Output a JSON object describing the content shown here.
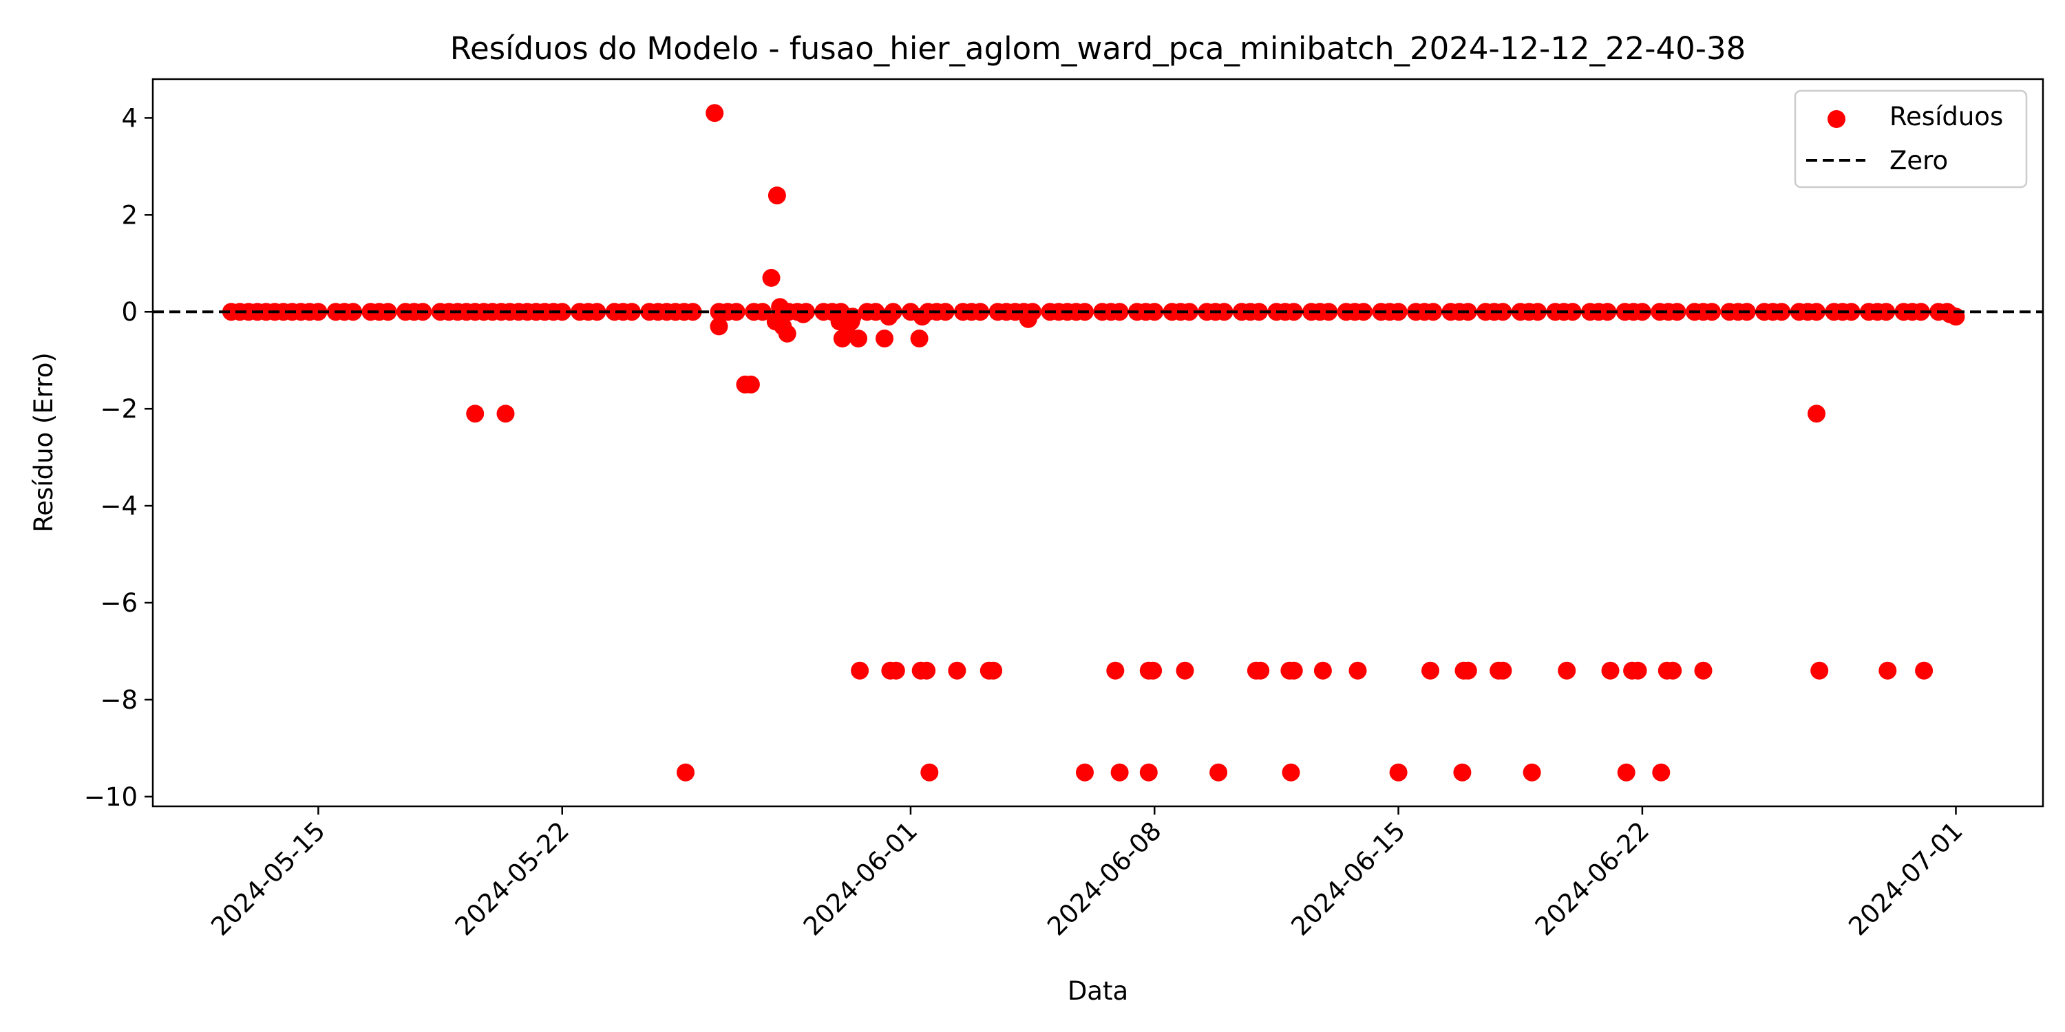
{
  "chart_data": {
    "type": "scatter",
    "title": "Resíduos do Modelo - fusao_hier_aglom_ward_pca_minibatch_2024-12-12_22-40-38",
    "xlabel": "Data",
    "ylabel": "Resíduo (Erro)",
    "xlim": [
      "2024-05-10",
      "2024-07-03"
    ],
    "ylim": [
      -10.2,
      4.8
    ],
    "xticks": [
      "2024-05-15",
      "2024-05-22",
      "2024-06-01",
      "2024-06-08",
      "2024-06-15",
      "2024-06-22",
      "2024-07-01"
    ],
    "yticks": [
      4,
      2,
      0,
      -2,
      -4,
      -6,
      -8,
      -10
    ],
    "ytick_labels": [
      "4",
      "2",
      "0",
      "−2",
      "−4",
      "−6",
      "−8",
      "−10"
    ],
    "grid": false,
    "legend": {
      "position": "top-right",
      "entries": [
        {
          "label": "Resíduos",
          "marker": "circle",
          "color": "#ff0000"
        },
        {
          "label": "Zero",
          "marker": "dashed-line",
          "color": "#000000"
        }
      ]
    },
    "reference_line": {
      "name": "Zero",
      "y": 0,
      "style": "dashed",
      "color": "#000000"
    },
    "series": [
      {
        "name": "Resíduos",
        "color": "#ff0000",
        "points": [
          [
            "2024-05-12 12:00",
            0
          ],
          [
            "2024-05-12 18:00",
            0
          ],
          [
            "2024-05-13 00:00",
            0
          ],
          [
            "2024-05-13 06:00",
            0
          ],
          [
            "2024-05-13 12:00",
            0
          ],
          [
            "2024-05-13 18:00",
            0
          ],
          [
            "2024-05-14 00:00",
            0
          ],
          [
            "2024-05-14 06:00",
            0
          ],
          [
            "2024-05-14 12:00",
            0
          ],
          [
            "2024-05-14 18:00",
            0
          ],
          [
            "2024-05-15 00:00",
            0
          ],
          [
            "2024-05-15 12:00",
            0
          ],
          [
            "2024-05-15 18:00",
            0
          ],
          [
            "2024-05-16 00:00",
            0
          ],
          [
            "2024-05-16 12:00",
            0
          ],
          [
            "2024-05-16 18:00",
            0
          ],
          [
            "2024-05-17 00:00",
            0
          ],
          [
            "2024-05-17 12:00",
            0
          ],
          [
            "2024-05-17 18:00",
            0
          ],
          [
            "2024-05-18 00:00",
            0
          ],
          [
            "2024-05-18 12:00",
            0
          ],
          [
            "2024-05-18 18:00",
            0
          ],
          [
            "2024-05-19 00:00",
            0
          ],
          [
            "2024-05-19 06:00",
            0
          ],
          [
            "2024-05-19 12:00",
            0
          ],
          [
            "2024-05-19 18:00",
            0
          ],
          [
            "2024-05-20 00:00",
            0
          ],
          [
            "2024-05-20 06:00",
            0
          ],
          [
            "2024-05-20 12:00",
            0
          ],
          [
            "2024-05-20 18:00",
            0
          ],
          [
            "2024-05-21 00:00",
            0
          ],
          [
            "2024-05-21 06:00",
            0
          ],
          [
            "2024-05-21 12:00",
            0
          ],
          [
            "2024-05-21 18:00",
            0
          ],
          [
            "2024-05-22 00:00",
            0
          ],
          [
            "2024-05-22 12:00",
            0
          ],
          [
            "2024-05-22 18:00",
            0
          ],
          [
            "2024-05-23 00:00",
            0
          ],
          [
            "2024-05-23 12:00",
            0
          ],
          [
            "2024-05-23 18:00",
            0
          ],
          [
            "2024-05-24 00:00",
            0
          ],
          [
            "2024-05-24 12:00",
            0
          ],
          [
            "2024-05-24 18:00",
            0
          ],
          [
            "2024-05-25 00:00",
            0
          ],
          [
            "2024-05-25 06:00",
            0
          ],
          [
            "2024-05-25 12:00",
            0
          ],
          [
            "2024-05-25 18:00",
            0
          ],
          [
            "2024-05-26 12:00",
            0
          ],
          [
            "2024-05-26 18:00",
            0
          ],
          [
            "2024-05-27 00:00",
            0
          ],
          [
            "2024-05-27 12:00",
            0
          ],
          [
            "2024-05-27 18:00",
            0
          ],
          [
            "2024-05-28 12:00",
            0
          ],
          [
            "2024-05-28 18:00",
            0
          ],
          [
            "2024-05-29 00:00",
            0
          ],
          [
            "2024-05-29 12:00",
            0
          ],
          [
            "2024-05-29 18:00",
            0
          ],
          [
            "2024-05-30 00:00",
            0
          ],
          [
            "2024-05-30 18:00",
            0
          ],
          [
            "2024-05-31 00:00",
            0
          ],
          [
            "2024-05-31 12:00",
            0
          ],
          [
            "2024-06-01 00:00",
            0
          ],
          [
            "2024-06-01 12:00",
            0
          ],
          [
            "2024-06-01 18:00",
            0
          ],
          [
            "2024-06-02 00:00",
            0
          ],
          [
            "2024-06-02 12:00",
            0
          ],
          [
            "2024-06-02 18:00",
            0
          ],
          [
            "2024-06-03 00:00",
            0
          ],
          [
            "2024-06-03 12:00",
            0
          ],
          [
            "2024-06-03 18:00",
            0
          ],
          [
            "2024-06-04 00:00",
            0
          ],
          [
            "2024-06-04 06:00",
            0
          ],
          [
            "2024-06-04 12:00",
            0
          ],
          [
            "2024-06-05 00:00",
            0
          ],
          [
            "2024-06-05 06:00",
            0
          ],
          [
            "2024-06-05 12:00",
            0
          ],
          [
            "2024-06-05 18:00",
            0
          ],
          [
            "2024-06-06 00:00",
            0
          ],
          [
            "2024-06-06 12:00",
            0
          ],
          [
            "2024-06-06 18:00",
            0
          ],
          [
            "2024-06-07 00:00",
            0
          ],
          [
            "2024-06-07 12:00",
            0
          ],
          [
            "2024-06-07 18:00",
            0
          ],
          [
            "2024-06-08 00:00",
            0
          ],
          [
            "2024-06-08 12:00",
            0
          ],
          [
            "2024-06-08 18:00",
            0
          ],
          [
            "2024-06-09 00:00",
            0
          ],
          [
            "2024-06-09 12:00",
            0
          ],
          [
            "2024-06-09 18:00",
            0
          ],
          [
            "2024-06-10 00:00",
            0
          ],
          [
            "2024-06-10 12:00",
            0
          ],
          [
            "2024-06-10 18:00",
            0
          ],
          [
            "2024-06-11 00:00",
            0
          ],
          [
            "2024-06-11 12:00",
            0
          ],
          [
            "2024-06-11 18:00",
            0
          ],
          [
            "2024-06-12 00:00",
            0
          ],
          [
            "2024-06-12 12:00",
            0
          ],
          [
            "2024-06-12 18:00",
            0
          ],
          [
            "2024-06-13 00:00",
            0
          ],
          [
            "2024-06-13 12:00",
            0
          ],
          [
            "2024-06-13 18:00",
            0
          ],
          [
            "2024-06-14 00:00",
            0
          ],
          [
            "2024-06-14 12:00",
            0
          ],
          [
            "2024-06-14 18:00",
            0
          ],
          [
            "2024-06-15 00:00",
            0
          ],
          [
            "2024-06-15 12:00",
            0
          ],
          [
            "2024-06-15 18:00",
            0
          ],
          [
            "2024-06-16 00:00",
            0
          ],
          [
            "2024-06-16 12:00",
            0
          ],
          [
            "2024-06-16 18:00",
            0
          ],
          [
            "2024-06-17 00:00",
            0
          ],
          [
            "2024-06-17 12:00",
            0
          ],
          [
            "2024-06-17 18:00",
            0
          ],
          [
            "2024-06-18 00:00",
            0
          ],
          [
            "2024-06-18 12:00",
            0
          ],
          [
            "2024-06-18 18:00",
            0
          ],
          [
            "2024-06-19 00:00",
            0
          ],
          [
            "2024-06-19 12:00",
            0
          ],
          [
            "2024-06-19 18:00",
            0
          ],
          [
            "2024-06-20 00:00",
            0
          ],
          [
            "2024-06-20 12:00",
            0
          ],
          [
            "2024-06-20 18:00",
            0
          ],
          [
            "2024-06-21 00:00",
            0
          ],
          [
            "2024-06-21 12:00",
            0
          ],
          [
            "2024-06-21 18:00",
            0
          ],
          [
            "2024-06-22 00:00",
            0
          ],
          [
            "2024-06-22 12:00",
            0
          ],
          [
            "2024-06-22 18:00",
            0
          ],
          [
            "2024-06-23 00:00",
            0
          ],
          [
            "2024-06-23 12:00",
            0
          ],
          [
            "2024-06-23 18:00",
            0
          ],
          [
            "2024-06-24 00:00",
            0
          ],
          [
            "2024-06-24 12:00",
            0
          ],
          [
            "2024-06-24 18:00",
            0
          ],
          [
            "2024-06-25 00:00",
            0
          ],
          [
            "2024-06-25 12:00",
            0
          ],
          [
            "2024-06-25 18:00",
            0
          ],
          [
            "2024-06-26 00:00",
            0
          ],
          [
            "2024-06-26 12:00",
            0
          ],
          [
            "2024-06-26 18:00",
            0
          ],
          [
            "2024-06-27 00:00",
            0
          ],
          [
            "2024-06-27 12:00",
            0
          ],
          [
            "2024-06-27 18:00",
            0
          ],
          [
            "2024-06-28 00:00",
            0
          ],
          [
            "2024-06-28 12:00",
            0
          ],
          [
            "2024-06-28 18:00",
            0
          ],
          [
            "2024-06-29 00:00",
            0
          ],
          [
            "2024-06-29 12:00",
            0
          ],
          [
            "2024-06-29 18:00",
            0
          ],
          [
            "2024-06-30 00:00",
            0
          ],
          [
            "2024-06-30 12:00",
            0
          ],
          [
            "2024-06-30 18:00",
            0
          ],
          [
            "2024-06-30 20:00",
            -0.05
          ],
          [
            "2024-07-01 00:00",
            -0.1
          ],
          [
            "2024-05-26 09:00",
            4.1
          ],
          [
            "2024-05-26 12:00",
            -0.3
          ],
          [
            "2024-05-27 06:00",
            -1.5
          ],
          [
            "2024-05-27 10:00",
            -1.5
          ],
          [
            "2024-05-28 00:00",
            0.7
          ],
          [
            "2024-05-28 04:00",
            2.4
          ],
          [
            "2024-05-28 06:00",
            0.1
          ],
          [
            "2024-05-28 03:00",
            -0.2
          ],
          [
            "2024-05-28 08:00",
            -0.3
          ],
          [
            "2024-05-28 11:00",
            -0.45
          ],
          [
            "2024-05-28 22:00",
            -0.05
          ],
          [
            "2024-05-29 23:00",
            -0.2
          ],
          [
            "2024-05-30 01:00",
            -0.55
          ],
          [
            "2024-05-30 04:00",
            -0.3
          ],
          [
            "2024-05-30 07:00",
            -0.2
          ],
          [
            "2024-05-30 08:00",
            -0.1
          ],
          [
            "2024-05-30 12:00",
            -0.55
          ],
          [
            "2024-05-31 06:00",
            -0.55
          ],
          [
            "2024-05-31 09:00",
            -0.1
          ],
          [
            "2024-06-01 06:00",
            -0.55
          ],
          [
            "2024-06-01 08:00",
            -0.1
          ],
          [
            "2024-06-04 09:00",
            -0.15
          ],
          [
            "2024-05-19 12:00",
            -2.1
          ],
          [
            "2024-05-20 09:00",
            -2.1
          ],
          [
            "2024-06-27 00:00",
            -2.1
          ],
          [
            "2024-05-30 13:00",
            -7.4
          ],
          [
            "2024-05-31 10:00",
            -7.4
          ],
          [
            "2024-05-31 14:00",
            -7.4
          ],
          [
            "2024-06-01 07:00",
            -7.4
          ],
          [
            "2024-06-01 11:00",
            -7.4
          ],
          [
            "2024-06-02 08:00",
            -7.4
          ],
          [
            "2024-06-03 06:00",
            -7.4
          ],
          [
            "2024-06-03 09:00",
            -7.4
          ],
          [
            "2024-06-06 21:00",
            -7.4
          ],
          [
            "2024-06-07 20:00",
            -7.4
          ],
          [
            "2024-06-07 23:00",
            -7.4
          ],
          [
            "2024-06-08 21:00",
            -7.4
          ],
          [
            "2024-06-10 22:00",
            -7.4
          ],
          [
            "2024-06-11 01:00",
            -7.4
          ],
          [
            "2024-06-11 21:00",
            -7.4
          ],
          [
            "2024-06-12 00:00",
            -7.4
          ],
          [
            "2024-06-12 20:00",
            -7.4
          ],
          [
            "2024-06-13 20:00",
            -7.4
          ],
          [
            "2024-06-15 22:00",
            -7.4
          ],
          [
            "2024-06-16 21:00",
            -7.4
          ],
          [
            "2024-06-17 00:00",
            -7.4
          ],
          [
            "2024-06-17 21:00",
            -7.4
          ],
          [
            "2024-06-18 00:00",
            -7.4
          ],
          [
            "2024-06-19 20:00",
            -7.4
          ],
          [
            "2024-06-21 02:00",
            -7.4
          ],
          [
            "2024-06-21 17:00",
            -7.4
          ],
          [
            "2024-06-21 21:00",
            -7.4
          ],
          [
            "2024-06-22 17:00",
            -7.4
          ],
          [
            "2024-06-22 21:00",
            -7.4
          ],
          [
            "2024-06-23 18:00",
            -7.4
          ],
          [
            "2024-06-27 02:00",
            -7.4
          ],
          [
            "2024-06-29 01:00",
            -7.4
          ],
          [
            "2024-06-30 02:00",
            -7.4
          ],
          [
            "2024-05-25 13:00",
            -9.5
          ],
          [
            "2024-06-01 13:00",
            -9.5
          ],
          [
            "2024-06-06 00:00",
            -9.5
          ],
          [
            "2024-06-07 00:00",
            -9.5
          ],
          [
            "2024-06-07 20:00",
            -9.5
          ],
          [
            "2024-06-09 20:00",
            -9.5
          ],
          [
            "2024-06-11 22:00",
            -9.5
          ],
          [
            "2024-06-15 00:00",
            -9.5
          ],
          [
            "2024-06-16 20:00",
            -9.5
          ],
          [
            "2024-06-18 20:00",
            -9.5
          ],
          [
            "2024-06-21 13:00",
            -9.5
          ],
          [
            "2024-06-22 13:00",
            -9.5
          ]
        ]
      }
    ]
  }
}
